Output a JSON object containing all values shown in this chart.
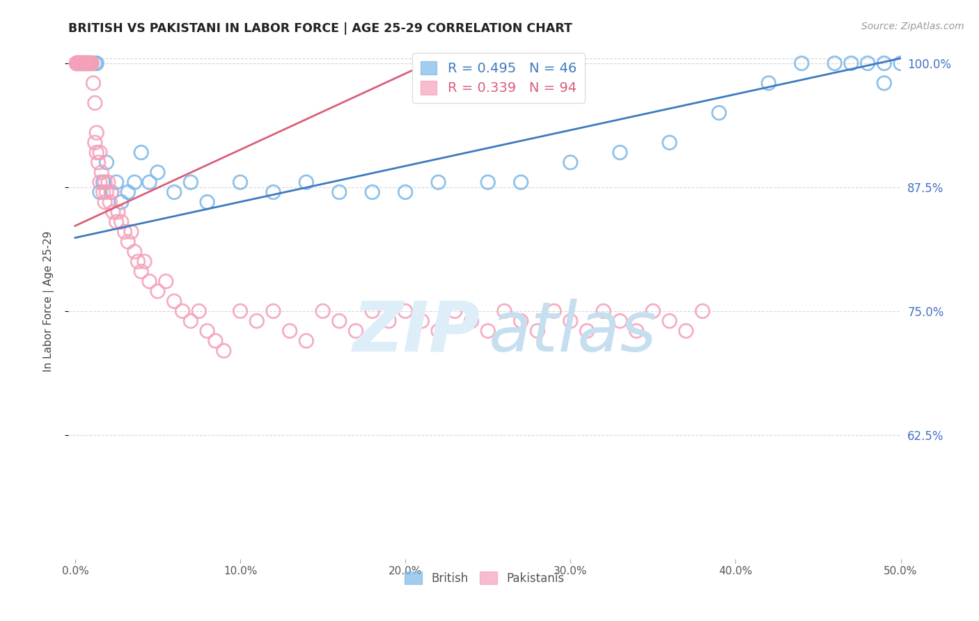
{
  "title": "BRITISH VS PAKISTANI IN LABOR FORCE | AGE 25-29 CORRELATION CHART",
  "source": "Source: ZipAtlas.com",
  "ylabel": "In Labor Force | Age 25-29",
  "british_R": 0.495,
  "british_N": 46,
  "pakistani_R": 0.339,
  "pakistani_N": 94,
  "british_color": "#7ab8e8",
  "pakistani_color": "#f4a0b8",
  "british_line_color": "#3d7abf",
  "pakistani_line_color": "#d95f7a",
  "xlim_min": 0.0,
  "xlim_max": 0.5,
  "ylim_min": 0.5,
  "ylim_max": 1.02,
  "yticks": [
    0.625,
    0.75,
    0.875,
    1.0
  ],
  "ytick_labels": [
    "62.5%",
    "75.0%",
    "87.5%",
    "100.0%"
  ],
  "xticks": [
    0.0,
    0.1,
    0.2,
    0.3,
    0.4,
    0.5
  ],
  "xtick_labels": [
    "0.0%",
    "10.0%",
    "20.0%",
    "30.0%",
    "40.0%",
    "50.0%"
  ],
  "background_color": "#ffffff",
  "grid_color": "#cccccc",
  "right_axis_color": "#4472c4",
  "watermark_zip_color": "#ddeef8",
  "watermark_atlas_color": "#c5dff0",
  "british_x": [
    0.002,
    0.003,
    0.004,
    0.005,
    0.006,
    0.007,
    0.008,
    0.009,
    0.01,
    0.012,
    0.013,
    0.015,
    0.017,
    0.019,
    0.022,
    0.025,
    0.028,
    0.032,
    0.036,
    0.04,
    0.045,
    0.05,
    0.06,
    0.07,
    0.08,
    0.1,
    0.12,
    0.14,
    0.16,
    0.18,
    0.2,
    0.22,
    0.25,
    0.27,
    0.3,
    0.33,
    0.36,
    0.39,
    0.42,
    0.44,
    0.46,
    0.47,
    0.48,
    0.49,
    0.49,
    0.5
  ],
  "british_y": [
    1.0,
    1.0,
    1.0,
    1.0,
    1.0,
    1.0,
    1.0,
    1.0,
    1.0,
    1.0,
    1.0,
    0.87,
    0.88,
    0.9,
    0.87,
    0.88,
    0.86,
    0.87,
    0.88,
    0.91,
    0.88,
    0.89,
    0.87,
    0.88,
    0.86,
    0.88,
    0.87,
    0.88,
    0.87,
    0.87,
    0.87,
    0.88,
    0.88,
    0.88,
    0.9,
    0.91,
    0.92,
    0.95,
    0.98,
    1.0,
    1.0,
    1.0,
    1.0,
    0.98,
    1.0,
    1.0
  ],
  "pakistani_x": [
    0.001,
    0.001,
    0.001,
    0.001,
    0.001,
    0.002,
    0.002,
    0.002,
    0.003,
    0.003,
    0.003,
    0.004,
    0.004,
    0.004,
    0.005,
    0.005,
    0.005,
    0.006,
    0.006,
    0.007,
    0.007,
    0.008,
    0.008,
    0.009,
    0.009,
    0.01,
    0.01,
    0.01,
    0.011,
    0.012,
    0.012,
    0.013,
    0.013,
    0.014,
    0.015,
    0.015,
    0.016,
    0.017,
    0.018,
    0.018,
    0.019,
    0.02,
    0.021,
    0.022,
    0.023,
    0.025,
    0.026,
    0.028,
    0.03,
    0.032,
    0.034,
    0.036,
    0.038,
    0.04,
    0.042,
    0.045,
    0.05,
    0.055,
    0.06,
    0.065,
    0.07,
    0.075,
    0.08,
    0.085,
    0.09,
    0.1,
    0.11,
    0.12,
    0.13,
    0.14,
    0.15,
    0.16,
    0.17,
    0.18,
    0.19,
    0.2,
    0.21,
    0.22,
    0.23,
    0.24,
    0.25,
    0.26,
    0.27,
    0.28,
    0.29,
    0.3,
    0.31,
    0.32,
    0.33,
    0.34,
    0.35,
    0.36,
    0.37,
    0.38
  ],
  "pakistani_y": [
    1.0,
    1.0,
    1.0,
    1.0,
    1.0,
    1.0,
    1.0,
    1.0,
    1.0,
    1.0,
    1.0,
    1.0,
    1.0,
    1.0,
    1.0,
    1.0,
    1.0,
    1.0,
    1.0,
    1.0,
    1.0,
    1.0,
    1.0,
    1.0,
    1.0,
    1.0,
    1.0,
    1.0,
    0.98,
    0.96,
    0.92,
    0.93,
    0.91,
    0.9,
    0.91,
    0.88,
    0.89,
    0.87,
    0.88,
    0.86,
    0.87,
    0.88,
    0.86,
    0.87,
    0.85,
    0.84,
    0.85,
    0.84,
    0.83,
    0.82,
    0.83,
    0.81,
    0.8,
    0.79,
    0.8,
    0.78,
    0.77,
    0.78,
    0.76,
    0.75,
    0.74,
    0.75,
    0.73,
    0.72,
    0.71,
    0.75,
    0.74,
    0.75,
    0.73,
    0.72,
    0.75,
    0.74,
    0.73,
    0.75,
    0.74,
    0.75,
    0.74,
    0.73,
    0.75,
    0.74,
    0.73,
    0.75,
    0.74,
    0.73,
    0.75,
    0.74,
    0.73,
    0.75,
    0.74,
    0.73,
    0.75,
    0.74,
    0.73,
    0.75
  ],
  "british_trend_x": [
    0.0,
    0.5
  ],
  "british_trend_y": [
    0.824,
    1.005
  ],
  "pakistani_trend_x": [
    0.0,
    0.22
  ],
  "pakistani_trend_y": [
    0.836,
    1.005
  ]
}
